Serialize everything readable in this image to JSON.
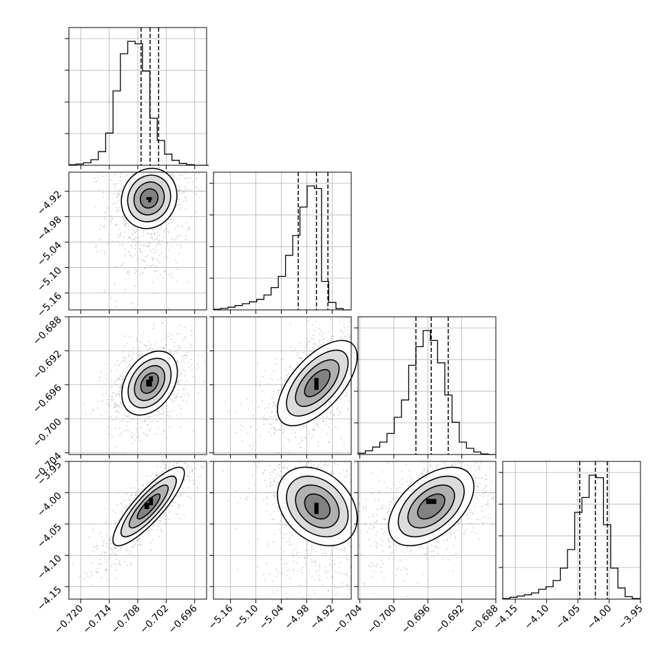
{
  "chart_data": {
    "type": "corner",
    "parameters": [
      {
        "range": [
          -0.7225,
          -0.6935
        ],
        "ticks": [
          -0.72,
          -0.714,
          -0.708,
          -0.702,
          -0.696
        ],
        "tick_labels": [
          "−0.720",
          "−0.714",
          "−0.708",
          "−0.702",
          "−0.696"
        ],
        "quantiles": [
          -0.7073,
          -0.7054,
          -0.7036
        ],
        "peak_count": 1
      },
      {
        "range": [
          -5.2,
          -4.875
        ],
        "ticks": [
          -5.16,
          -5.1,
          -5.04,
          -4.98,
          -4.92
        ],
        "tick_labels": [
          "−5.16",
          "−5.10",
          "−5.04",
          "−4.98",
          "−4.92"
        ],
        "quantiles": [
          -5.0,
          -4.957,
          -4.93
        ],
        "peak_count": 1
      },
      {
        "range": [
          -0.7042,
          -0.688
        ],
        "ticks": [
          -0.704,
          -0.7,
          -0.696,
          -0.692,
          -0.688
        ],
        "tick_labels": [
          "−0.704",
          "−0.700",
          "−0.696",
          "−0.692",
          "−0.688"
        ],
        "quantiles": [
          -0.6974,
          -0.6956,
          -0.6936
        ],
        "peak_count": 1
      },
      {
        "range": [
          -4.17,
          -3.95
        ],
        "ticks": [
          -4.15,
          -4.1,
          -4.05,
          -4.0,
          -3.95
        ],
        "tick_labels": [
          "−4.15",
          "−4.10",
          "−4.05",
          "−4.00",
          "−3.95"
        ],
        "quantiles": [
          -4.047,
          -4.022,
          -4.003
        ],
        "peak_count": 1
      }
    ],
    "histograms": [
      {
        "param": 0,
        "edges": [
          -0.7225,
          -0.72095,
          -0.7194,
          -0.71785,
          -0.7163,
          -0.71475,
          -0.7132,
          -0.71165,
          -0.7101,
          -0.70855,
          -0.707,
          -0.70545,
          -0.7039,
          -0.70235,
          -0.7008,
          -0.69925,
          -0.6977,
          -0.69615,
          -0.6946,
          -0.69305
        ],
        "counts": [
          0.005,
          0.01,
          0.02,
          0.045,
          0.11,
          0.26,
          0.6,
          0.9,
          1.0,
          0.98,
          0.76,
          0.38,
          0.2,
          0.09,
          0.04,
          0.015,
          0.005,
          0.0,
          0.0
        ]
      },
      {
        "param": 1,
        "edges": [
          -5.2,
          -5.183,
          -5.166,
          -5.149,
          -5.132,
          -5.115,
          -5.098,
          -5.081,
          -5.064,
          -5.047,
          -5.03,
          -5.013,
          -4.996,
          -4.979,
          -4.962,
          -4.945,
          -4.928,
          -4.911,
          -4.894,
          -4.877
        ],
        "counts": [
          0.005,
          0.012,
          0.022,
          0.035,
          0.05,
          0.065,
          0.085,
          0.12,
          0.18,
          0.27,
          0.44,
          0.6,
          0.83,
          1.0,
          0.98,
          0.23,
          0.06,
          0.01,
          0.0
        ]
      },
      {
        "param": 2,
        "edges": [
          -0.7042,
          -0.70335,
          -0.7025,
          -0.70165,
          -0.7008,
          -0.69995,
          -0.6991,
          -0.69825,
          -0.6974,
          -0.69655,
          -0.6957,
          -0.69485,
          -0.694,
          -0.69315,
          -0.6923,
          -0.69145,
          -0.6906,
          -0.68975,
          -0.6889,
          -0.68805
        ],
        "counts": [
          0.01,
          0.03,
          0.06,
          0.1,
          0.17,
          0.3,
          0.44,
          0.72,
          0.87,
          1.0,
          0.92,
          0.74,
          0.48,
          0.26,
          0.1,
          0.05,
          0.02,
          0.005,
          0.0
        ]
      },
      {
        "param": 3,
        "edges": [
          -4.17,
          -4.1585,
          -4.147,
          -4.1355,
          -4.124,
          -4.1125,
          -4.101,
          -4.0895,
          -4.078,
          -4.0665,
          -4.055,
          -4.0435,
          -4.032,
          -4.0205,
          -4.009,
          -3.9975,
          -3.986,
          -3.9745,
          -3.963,
          -3.9515
        ],
        "counts": [
          0.005,
          0.015,
          0.025,
          0.035,
          0.05,
          0.08,
          0.1,
          0.15,
          0.25,
          0.4,
          0.7,
          0.82,
          1.0,
          0.98,
          0.6,
          0.25,
          0.09,
          0.02,
          0.005
        ]
      }
    ],
    "pairs": [
      {
        "x": 0,
        "y": 1,
        "center": [
          -0.7056,
          -4.937
        ],
        "sigma": [
          0.0028,
          0.034
        ],
        "correlation": 0.1,
        "skew_y": -1,
        "core_boxes": [
          [
            -0.7062,
            -0.705,
            -4.94,
            -4.934
          ],
          [
            -0.7058,
            -0.7052,
            -4.946,
            -4.934
          ]
        ]
      },
      {
        "x": 0,
        "y": 2,
        "center": [
          -0.7055,
          -0.6958
        ],
        "sigma": [
          0.0028,
          0.0018
        ],
        "correlation": 0.35,
        "skew_y": 0,
        "core_boxes": [
          [
            -0.7062,
            -0.705,
            -0.6962,
            -0.6954
          ],
          [
            -0.7056,
            -0.7048,
            -0.6956,
            -0.695
          ]
        ]
      },
      {
        "x": 0,
        "y": 3,
        "center": [
          -0.7057,
          -4.022
        ],
        "sigma": [
          0.0036,
          0.03
        ],
        "correlation": 0.85,
        "skew_y": 0,
        "core_boxes": [
          [
            -0.7066,
            -0.7056,
            -4.026,
            -4.016
          ],
          [
            -0.7056,
            -0.7048,
            -4.02,
            -4.008
          ]
        ]
      },
      {
        "x": 1,
        "y": 2,
        "center": [
          -4.955,
          -0.6958
        ],
        "sigma": [
          0.045,
          0.0024
        ],
        "correlation": 0.62,
        "skew_y": 0,
        "core_boxes": [
          [
            -4.962,
            -4.952,
            -0.6966,
            -0.6952
          ]
        ]
      },
      {
        "x": 1,
        "y": 3,
        "center": [
          -4.955,
          -4.022
        ],
        "sigma": [
          0.045,
          0.03
        ],
        "correlation": -0.3,
        "skew_y": -1,
        "core_boxes": [
          [
            -4.962,
            -4.952,
            -4.034,
            -4.016
          ]
        ]
      },
      {
        "x": 2,
        "y": 3,
        "center": [
          -0.6956,
          -4.022
        ],
        "sigma": [
          0.0024,
          0.03
        ],
        "correlation": 0.5,
        "skew_y": 0,
        "core_boxes": [
          [
            -0.6962,
            -0.695,
            -4.018,
            -4.01
          ]
        ]
      }
    ],
    "contour_levels": [
      0.5,
      1.0,
      1.5,
      2.0
    ],
    "grid": true,
    "show_titles": false
  }
}
